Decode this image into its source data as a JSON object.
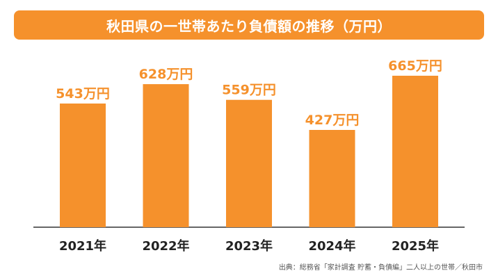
{
  "title": "秋田県の一世帯あたり負債額の推移（万円）",
  "source": "出典：総務省「家計調査 貯蓄・負債編」二人以上の世帯／秋田市",
  "colors": {
    "accent": "#f5912c",
    "label": "#f5912c",
    "axis": "#333333",
    "tick_text": "#222222"
  },
  "chart_data": {
    "type": "bar",
    "title": "秋田県の一世帯あたり負債額の推移（万円）",
    "categories": [
      "2021年",
      "2022年",
      "2023年",
      "2024年",
      "2025年"
    ],
    "values": [
      543,
      628,
      559,
      427,
      665
    ],
    "data_labels": [
      "543万円",
      "628万円",
      "559万円",
      "427万円",
      "665万円"
    ],
    "ylim": [
      0,
      665
    ],
    "grid": false,
    "legend": "none"
  }
}
